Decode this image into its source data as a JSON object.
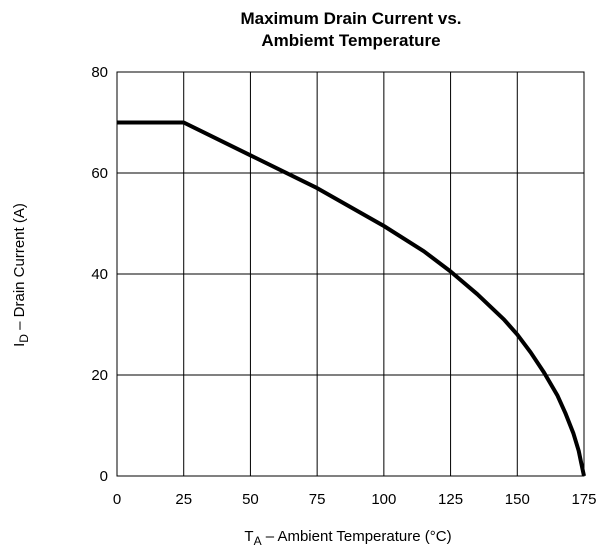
{
  "chart_data": {
    "type": "line",
    "title_line1": "Maximum Drain Current vs.",
    "title_line2": "Ambiemt Temperature",
    "xlabel": {
      "symbol": "T",
      "subscript": "A",
      "rest": " – Ambient Temperature (°C)"
    },
    "ylabel": {
      "symbol": "I",
      "subscript": "D",
      "rest": " – Drain Current (A)"
    },
    "xlim": [
      0,
      175
    ],
    "ylim": [
      0,
      80
    ],
    "xticks": [
      0,
      25,
      50,
      75,
      100,
      125,
      150,
      175
    ],
    "yticks": [
      0,
      20,
      40,
      60,
      80
    ],
    "grid": true,
    "series": [
      {
        "color": "#000000",
        "x": [
          0,
          25,
          50,
          75,
          100,
          115,
          125,
          135,
          145,
          150,
          155,
          160,
          165,
          168,
          171,
          173,
          174,
          175
        ],
        "y": [
          70,
          70,
          63.5,
          57,
          49.5,
          44.5,
          40.5,
          36,
          31,
          28,
          24.5,
          20.5,
          16,
          12.5,
          8.5,
          5,
          2.5,
          0
        ]
      }
    ]
  }
}
